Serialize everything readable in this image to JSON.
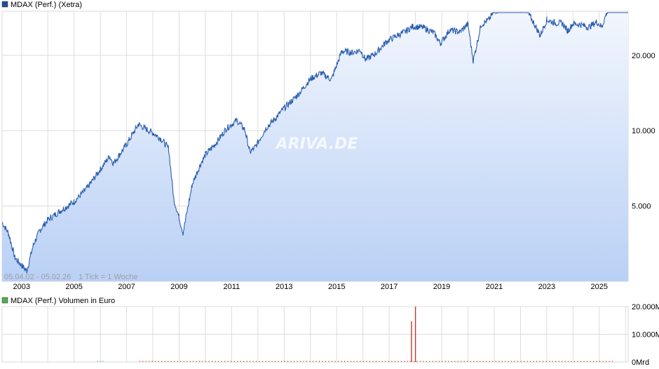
{
  "chart_data": [
    {
      "type": "area",
      "title": "MDAX (Perf.) (Xetra)",
      "legend_color": "#1f4e9c",
      "line_color": "#2a5db0",
      "fill_top": "#f2f6fd",
      "fill_bottom": "#b9d0f5",
      "period_label": "05.04.02 - 05.02.26",
      "tick_label": "1 Tick = 1 Woche",
      "watermark": "ARIVA.DE",
      "y_scale": "log",
      "y_ticks": [
        "5.000",
        "10.000",
        "20.000"
      ],
      "y_tick_values": [
        5000,
        10000,
        20000
      ],
      "ylim": [
        2500,
        30000
      ],
      "xlim": [
        2002.26,
        2026.1
      ],
      "x_ticks": [
        "2003",
        "2005",
        "2007",
        "2009",
        "2011",
        "2013",
        "2015",
        "2017",
        "2019",
        "2021",
        "2023",
        "2025"
      ],
      "grid": true,
      "x": [
        2002.26,
        2002.5,
        2002.75,
        2003.0,
        2003.2,
        2003.45,
        2003.7,
        2004.0,
        2004.5,
        2005.0,
        2005.5,
        2006.0,
        2006.35,
        2006.5,
        2007.0,
        2007.45,
        2007.7,
        2008.0,
        2008.3,
        2008.6,
        2008.8,
        2009.0,
        2009.15,
        2009.5,
        2009.8,
        2010.0,
        2010.4,
        2010.8,
        2011.2,
        2011.5,
        2011.7,
        2011.9,
        2012.3,
        2012.7,
        2013.0,
        2013.5,
        2014.0,
        2014.4,
        2014.8,
        2015.2,
        2015.6,
        2015.9,
        2016.1,
        2016.5,
        2016.9,
        2017.3,
        2017.6,
        2017.9,
        2018.3,
        2018.7,
        2018.95,
        2019.3,
        2019.7,
        2020.0,
        2020.2,
        2020.5,
        2020.8,
        2021.0,
        2021.4,
        2021.7,
        2021.9,
        2022.2,
        2022.5,
        2022.75,
        2023.0,
        2023.3,
        2023.6,
        2023.8,
        2024.0,
        2024.3,
        2024.6,
        2024.9,
        2025.1,
        2025.3,
        2025.6,
        2025.8,
        2026.1
      ],
      "values": [
        4300,
        3900,
        3100,
        2900,
        2750,
        3500,
        4000,
        4400,
        4800,
        5200,
        5900,
        7000,
        7900,
        7400,
        8800,
        10600,
        10200,
        9800,
        9300,
        8500,
        5300,
        4500,
        3900,
        6100,
        7300,
        8000,
        8900,
        10200,
        11000,
        10100,
        8200,
        8600,
        10200,
        11300,
        12300,
        13800,
        16100,
        17000,
        16000,
        20800,
        20500,
        21000,
        19200,
        20400,
        22700,
        24000,
        24800,
        26100,
        25800,
        24600,
        22300,
        25200,
        24800,
        26700,
        19000,
        26500,
        27800,
        30000,
        31000,
        32000,
        34500,
        30500,
        27000,
        24000,
        27700,
        27000,
        26800,
        25000,
        26800,
        26500,
        25900,
        27200,
        26000,
        30000,
        31000,
        30500,
        30600
      ]
    },
    {
      "type": "bar",
      "title": "MDAX (Perf.) Volumen in Euro",
      "legend_color": "#4caf50",
      "bar_color": "#c0392b",
      "y_ticks": [
        "0Mrd",
        "10.000M",
        "20.000M"
      ],
      "y_tick_values": [
        0,
        10000,
        20000
      ],
      "ylim": [
        0,
        20000
      ],
      "spikes_x": [
        2017.85,
        2018.0
      ],
      "spikes_values": [
        14700,
        20000
      ],
      "baseline_from": 2007.5,
      "baseline_to": 2025.6,
      "green_marks_x": [
        2005.9,
        2006.0,
        2006.1
      ]
    }
  ]
}
